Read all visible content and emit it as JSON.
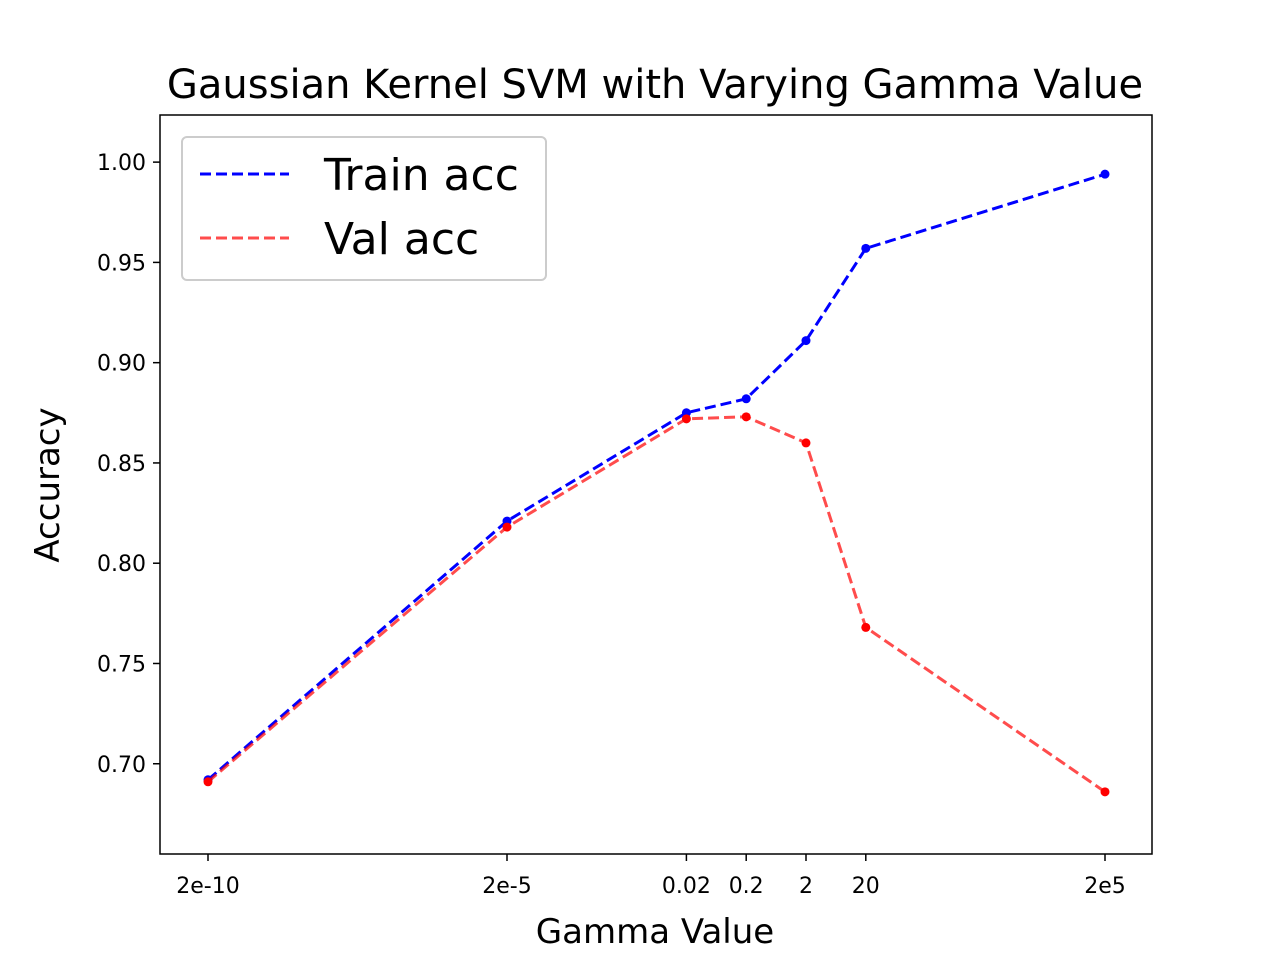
{
  "chart_data": {
    "type": "line",
    "title": "Gaussian Kernel SVM with Varying Gamma Value",
    "xlabel": "Gamma Value",
    "ylabel": "Accuracy",
    "x_scale": "log",
    "x": [
      2e-10,
      2e-05,
      0.02,
      0.2,
      2,
      20,
      200000
    ],
    "x_tick_labels": [
      "2e-10",
      "2e-5",
      "0.02",
      "0.2",
      "2",
      "20",
      "2e5"
    ],
    "y_ticks": [
      0.7,
      0.75,
      0.8,
      0.85,
      0.9,
      0.95,
      1.0
    ],
    "y_tick_labels": [
      "0.70",
      "0.75",
      "0.80",
      "0.85",
      "0.90",
      "0.95",
      "1.00"
    ],
    "ylim": [
      0.655,
      1.0235
    ],
    "grid": false,
    "legend_position": "top-left",
    "series": [
      {
        "name": "Train acc",
        "color": "#0000ff",
        "line_style": "dashed",
        "values": [
          0.692,
          0.821,
          0.875,
          0.882,
          0.911,
          0.957,
          0.994
        ]
      },
      {
        "name": "Val acc",
        "color": "#ff0000",
        "line_style": "dashed",
        "values": [
          0.691,
          0.818,
          0.872,
          0.873,
          0.86,
          0.768,
          0.686
        ]
      }
    ]
  }
}
